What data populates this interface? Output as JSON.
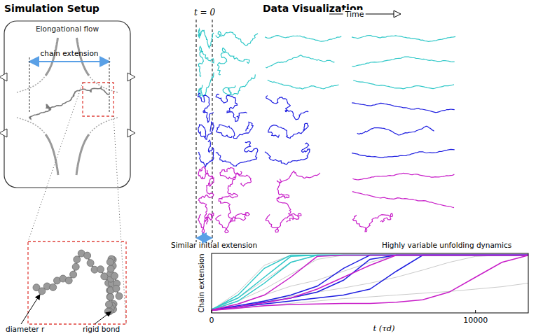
{
  "setup": {
    "title": "Simulation Setup",
    "flow_label": "Elongational flow",
    "extension_label": "chain extension",
    "bead_label": "diameter r",
    "bond_label": "rigid bond"
  },
  "visualization": {
    "title": "Data Visualization",
    "t0_label": "t = 0",
    "time_label": "Time",
    "initial_label": "Similar initial extension",
    "dynamics_label": "Highly variable unfolding dynamics"
  },
  "chart_data": {
    "type": "line",
    "x_label": "t   (τd)",
    "y_label": "Chain extension",
    "x": [
      0,
      1000,
      2000,
      3000,
      4000,
      5000,
      6000,
      7000,
      8000,
      9000,
      10000,
      11000,
      12000
    ],
    "xlim": [
      0,
      12000
    ],
    "xticks": [
      0,
      10000
    ],
    "ylim": [
      0,
      1
    ],
    "tick_labels": "x",
    "series": [
      {
        "color": "#b4b4b4",
        "line_style": "thin",
        "values": [
          0.05,
          0.35,
          0.8,
          0.97,
          0.97,
          0.97,
          0.97,
          0.97,
          0.97,
          0.97,
          0.97,
          0.97,
          0.97
        ]
      },
      {
        "color": "#b4b4b4",
        "line_style": "thin",
        "values": [
          0.06,
          0.2,
          0.4,
          0.65,
          0.9,
          0.97,
          0.97,
          0.97,
          0.97,
          0.97,
          0.97,
          0.97,
          0.97
        ]
      },
      {
        "color": "#b4b4b4",
        "line_style": "thin",
        "values": [
          0.04,
          0.15,
          0.3,
          0.45,
          0.55,
          0.7,
          0.85,
          0.97,
          0.97,
          0.97,
          0.97,
          0.97,
          0.97
        ]
      },
      {
        "color": "#b4b4b4",
        "line_style": "thin",
        "values": [
          0.05,
          0.1,
          0.2,
          0.28,
          0.35,
          0.42,
          0.5,
          0.6,
          0.72,
          0.85,
          0.95,
          0.97,
          0.97
        ]
      },
      {
        "color": "#b4b4b4",
        "line_style": "thin",
        "values": [
          0.05,
          0.25,
          0.55,
          0.85,
          0.97,
          0.97,
          0.97,
          0.97,
          0.97,
          0.97,
          0.97,
          0.97,
          0.97
        ]
      },
      {
        "color": "#b4b4b4",
        "line_style": "thin",
        "values": [
          0.04,
          0.08,
          0.12,
          0.16,
          0.2,
          0.24,
          0.27,
          0.3,
          0.33,
          0.36,
          0.4,
          0.44,
          0.5
        ]
      },
      {
        "color": "#30c8c8",
        "values": [
          0.05,
          0.3,
          0.75,
          0.97,
          0.97,
          0.97,
          0.97,
          0.97,
          0.97,
          0.97,
          0.97,
          0.97,
          0.97
        ]
      },
      {
        "color": "#30c8c8",
        "values": [
          0.05,
          0.2,
          0.5,
          0.85,
          0.97,
          0.97,
          0.97,
          0.97,
          0.97,
          0.97,
          0.97,
          0.97,
          0.97
        ]
      },
      {
        "color": "#30c8c8",
        "values": [
          0.06,
          0.25,
          0.6,
          0.95,
          0.97,
          0.97,
          0.97,
          0.97,
          0.97,
          0.97,
          0.97,
          0.97,
          0.97
        ]
      },
      {
        "color": "#1e1ee0",
        "values": [
          0.05,
          0.12,
          0.2,
          0.3,
          0.45,
          0.75,
          0.97,
          0.97,
          0.97,
          0.97,
          0.97,
          0.97,
          0.97
        ]
      },
      {
        "color": "#1e1ee0",
        "values": [
          0.05,
          0.1,
          0.15,
          0.2,
          0.25,
          0.3,
          0.4,
          0.7,
          0.97,
          0.97,
          0.97,
          0.97,
          0.97
        ]
      },
      {
        "color": "#1e1ee0",
        "values": [
          0.04,
          0.1,
          0.18,
          0.25,
          0.35,
          0.55,
          0.9,
          0.97,
          0.97,
          0.97,
          0.97,
          0.97,
          0.97
        ]
      },
      {
        "color": "#c81ec8",
        "values": [
          0.05,
          0.15,
          0.3,
          0.6,
          0.95,
          0.97,
          0.97,
          0.97,
          0.97,
          0.97,
          0.97,
          0.97,
          0.97
        ]
      },
      {
        "color": "#c81ec8",
        "values": [
          0.04,
          0.1,
          0.17,
          0.25,
          0.4,
          0.6,
          0.8,
          0.97,
          0.97,
          0.97,
          0.97,
          0.97,
          0.97
        ]
      },
      {
        "color": "#c81ec8",
        "values": [
          0.04,
          0.08,
          0.12,
          0.14,
          0.15,
          0.16,
          0.16,
          0.18,
          0.22,
          0.35,
          0.6,
          0.85,
          0.97
        ]
      }
    ]
  }
}
